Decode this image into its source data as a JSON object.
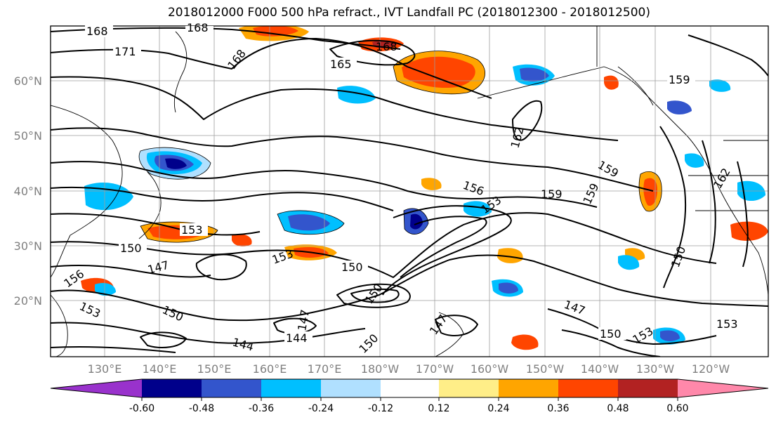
{
  "title": "2018012000 F000 500 hPa refract., IVT Landfall PC (2018012300 - 2018012500)",
  "lat_labels": [
    "60°N",
    "50°N",
    "40°N",
    "30°N",
    "20°N"
  ],
  "lon_labels": [
    "130°E",
    "140°E",
    "150°E",
    "160°E",
    "170°E",
    "180°W",
    "170°W",
    "160°W",
    "150°W",
    "140°W",
    "130°W",
    "120°W"
  ],
  "contour_labels": [
    "168",
    "168",
    "171",
    "168",
    "165",
    "168",
    "159",
    "162",
    "159",
    "159",
    "156",
    "159",
    "153",
    "153",
    "150",
    "153",
    "150",
    "147",
    "156",
    "153",
    "150",
    "147",
    "147",
    "144",
    "144",
    "150",
    "150",
    "147",
    "150",
    "150",
    "153",
    "162",
    "153"
  ],
  "colorbar": {
    "tick_labels": [
      "-0.60",
      "-0.48",
      "-0.36",
      "-0.24",
      "-0.12",
      "0.12",
      "0.24",
      "0.36",
      "0.48",
      "0.60"
    ],
    "colors": [
      "#9932cc",
      "#00008b",
      "#3355cc",
      "#00bfff",
      "#b0e0ff",
      "#ffffff",
      "#ffee88",
      "#ffa500",
      "#ff4500",
      "#b22222",
      "#ff88aa"
    ]
  }
}
